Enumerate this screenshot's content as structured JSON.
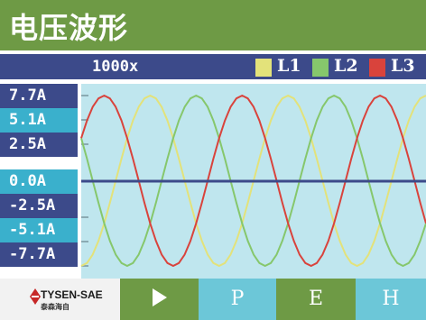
{
  "title": "电压波形",
  "zoom": "1000x",
  "legend": [
    {
      "label": "L1",
      "color": "#e3e27a"
    },
    {
      "label": "L2",
      "color": "#86c76c"
    },
    {
      "label": "L3",
      "color": "#d9433c"
    }
  ],
  "y_axis_labels": [
    "7.7A",
    "5.1A",
    "2.5A",
    "0.0A",
    "-2.5A",
    "-5.1A",
    "-7.7A"
  ],
  "colors": {
    "title_bg": "#6e9a45",
    "status_bg": "#3c4a8a",
    "plot_bg": "#bfe6ee",
    "zero_line": "#3c4a8a",
    "label_light": "#3ab0cc",
    "label_dark": "#3c4a8a"
  },
  "chart_data": {
    "type": "line",
    "ylim": [
      -7.7,
      7.7
    ],
    "x": [
      0,
      15,
      30,
      45,
      60,
      75,
      90,
      105,
      120,
      135,
      150,
      165,
      180,
      195,
      210,
      225,
      240,
      255,
      270,
      285,
      300,
      315,
      330,
      345,
      360,
      375,
      390,
      405,
      420,
      435,
      450,
      465,
      480,
      495,
      510,
      525,
      540,
      555,
      570,
      585,
      600,
      615,
      630,
      645,
      660,
      675,
      690,
      705,
      720,
      735,
      750,
      765,
      780,
      795,
      810,
      825,
      840,
      855,
      870,
      885,
      900
    ],
    "series": [
      {
        "name": "L1",
        "color": "#e3e27a",
        "values": [
          -7.7,
          -7.44,
          -6.67,
          -5.44,
          -3.85,
          -1.99,
          0.0,
          1.99,
          3.85,
          5.44,
          6.67,
          7.44,
          7.7,
          7.44,
          6.67,
          5.44,
          3.85,
          1.99,
          0.0,
          -1.99,
          -3.85,
          -5.44,
          -6.67,
          -7.44,
          -7.7,
          -7.44,
          -6.67,
          -5.44,
          -3.85,
          -1.99,
          0.0,
          1.99,
          3.85,
          5.44,
          6.67,
          7.44,
          7.7,
          7.44,
          6.67,
          5.44,
          3.85,
          1.99,
          0.0,
          -1.99,
          -3.85,
          -5.44,
          -6.67,
          -7.44,
          -7.7,
          -7.44,
          -6.67,
          -5.44,
          -3.85,
          -1.99,
          0.0,
          1.99,
          3.85,
          5.44,
          6.67,
          7.44,
          7.7
        ]
      },
      {
        "name": "L2",
        "color": "#86c76c",
        "values": [
          3.85,
          1.99,
          0.0,
          -1.99,
          -3.85,
          -5.44,
          -6.67,
          -7.44,
          -7.7,
          -7.44,
          -6.67,
          -5.44,
          -3.85,
          -1.99,
          0.0,
          1.99,
          3.85,
          5.44,
          6.67,
          7.44,
          7.7,
          7.44,
          6.67,
          5.44,
          3.85,
          1.99,
          0.0,
          -1.99,
          -3.85,
          -5.44,
          -6.67,
          -7.44,
          -7.7,
          -7.44,
          -6.67,
          -5.44,
          -3.85,
          -1.99,
          0.0,
          1.99,
          3.85,
          5.44,
          6.67,
          7.44,
          7.7,
          7.44,
          6.67,
          5.44,
          3.85,
          1.99,
          0.0,
          -1.99,
          -3.85,
          -5.44,
          -6.67,
          -7.44,
          -7.7,
          -7.44,
          -6.67,
          -5.44,
          -3.85
        ]
      },
      {
        "name": "L3",
        "color": "#d9433c",
        "values": [
          3.85,
          5.44,
          6.67,
          7.44,
          7.7,
          7.44,
          6.67,
          5.44,
          3.85,
          1.99,
          0.0,
          -1.99,
          -3.85,
          -5.44,
          -6.67,
          -7.44,
          -7.7,
          -7.44,
          -6.67,
          -5.44,
          -3.85,
          -1.99,
          0.0,
          1.99,
          3.85,
          5.44,
          6.67,
          7.44,
          7.7,
          7.44,
          6.67,
          5.44,
          3.85,
          1.99,
          0.0,
          -1.99,
          -3.85,
          -5.44,
          -6.67,
          -7.44,
          -7.7,
          -7.44,
          -6.67,
          -5.44,
          -3.85,
          -1.99,
          0.0,
          1.99,
          3.85,
          5.44,
          6.67,
          7.44,
          7.7,
          7.44,
          6.67,
          5.44,
          3.85,
          1.99,
          0.0,
          -1.99,
          -3.85
        ]
      }
    ]
  },
  "logo": {
    "name": "TYSEN-SAE",
    "sub": "泰森海自"
  },
  "buttons": {
    "play": "play",
    "p": "P",
    "e": "E",
    "h": "H"
  }
}
